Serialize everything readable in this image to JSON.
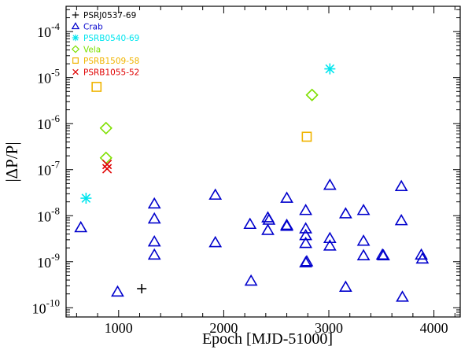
{
  "chart_data": {
    "type": "scatter",
    "title": "",
    "xlabel": "Epoch [MJD-51000]",
    "ylabel": "|ΔP/P|",
    "xlim": [
      500,
      4250
    ],
    "ylim_log10": [
      -10.2,
      -3.45
    ],
    "x_ticks": [
      1000,
      2000,
      3000,
      4000
    ],
    "x_tick_labels": [
      "1000",
      "2000",
      "3000",
      "4000"
    ],
    "y_ticks_log10": [
      -10,
      -9,
      -8,
      -7,
      -6,
      -5,
      -4
    ],
    "y_tick_labels": [
      {
        "base": "10",
        "exp": "-10"
      },
      {
        "base": "10",
        "exp": "-9"
      },
      {
        "base": "10",
        "exp": "-8"
      },
      {
        "base": "10",
        "exp": "-7"
      },
      {
        "base": "10",
        "exp": "-6"
      },
      {
        "base": "10",
        "exp": "-5"
      },
      {
        "base": "10",
        "exp": "-4"
      }
    ],
    "grid": false,
    "legend_position": "top-left",
    "series": [
      {
        "name": "PSRJ0537-69",
        "marker": "plus",
        "color": "#000000",
        "points": [
          [
            1220,
            2.6e-10
          ]
        ]
      },
      {
        "name": "Crab",
        "marker": "triangle",
        "color": "#0000cc",
        "points": [
          [
            640,
            5.5e-09
          ],
          [
            990,
            2.2e-10
          ],
          [
            1340,
            1.8e-08
          ],
          [
            1340,
            8.5e-09
          ],
          [
            1340,
            2.7e-09
          ],
          [
            1340,
            1.4e-09
          ],
          [
            1920,
            2.8e-08
          ],
          [
            1920,
            2.6e-09
          ],
          [
            2260,
            3.8e-10
          ],
          [
            2250,
            6.5e-09
          ],
          [
            2420,
            9e-09
          ],
          [
            2430,
            8e-09
          ],
          [
            2420,
            4.8e-09
          ],
          [
            2600,
            2.4e-08
          ],
          [
            2600,
            6.2e-09
          ],
          [
            2600,
            5.9e-09
          ],
          [
            2780,
            1.3e-08
          ],
          [
            2780,
            5.2e-09
          ],
          [
            2780,
            3.7e-09
          ],
          [
            2780,
            2.5e-09
          ],
          [
            2790,
            1e-09
          ],
          [
            2780,
            9.5e-10
          ],
          [
            3010,
            4.6e-08
          ],
          [
            3010,
            3.2e-09
          ],
          [
            3010,
            2.2e-09
          ],
          [
            3160,
            1.1e-08
          ],
          [
            3160,
            2.8e-10
          ],
          [
            3330,
            1.3e-08
          ],
          [
            3330,
            2.8e-09
          ],
          [
            3330,
            1.35e-09
          ],
          [
            3510,
            1.4e-09
          ],
          [
            3520,
            1.35e-09
          ],
          [
            3690,
            4.3e-08
          ],
          [
            3690,
            7.8e-09
          ],
          [
            3700,
            1.7e-10
          ],
          [
            3880,
            1.4e-09
          ],
          [
            3890,
            1.15e-09
          ]
        ]
      },
      {
        "name": "PSRB0540-69",
        "marker": "asterisk",
        "color": "#00e5ee",
        "points": [
          [
            690,
            2.4e-08
          ],
          [
            3010,
            1.55e-05
          ]
        ]
      },
      {
        "name": "Vela",
        "marker": "diamond",
        "color": "#7ee000",
        "points": [
          [
            880,
            8e-07
          ],
          [
            880,
            1.8e-07
          ],
          [
            2840,
            4.2e-06
          ]
        ]
      },
      {
        "name": "PSRB1509-58",
        "marker": "square",
        "color": "#f0b400",
        "points": [
          [
            790,
            6.3e-06
          ],
          [
            2790,
            5.2e-07
          ]
        ]
      },
      {
        "name": "PSRB1055-52",
        "marker": "cross",
        "color": "#e00000",
        "points": [
          [
            890,
            1.3e-07
          ],
          [
            890,
            1.05e-07
          ]
        ]
      }
    ]
  }
}
